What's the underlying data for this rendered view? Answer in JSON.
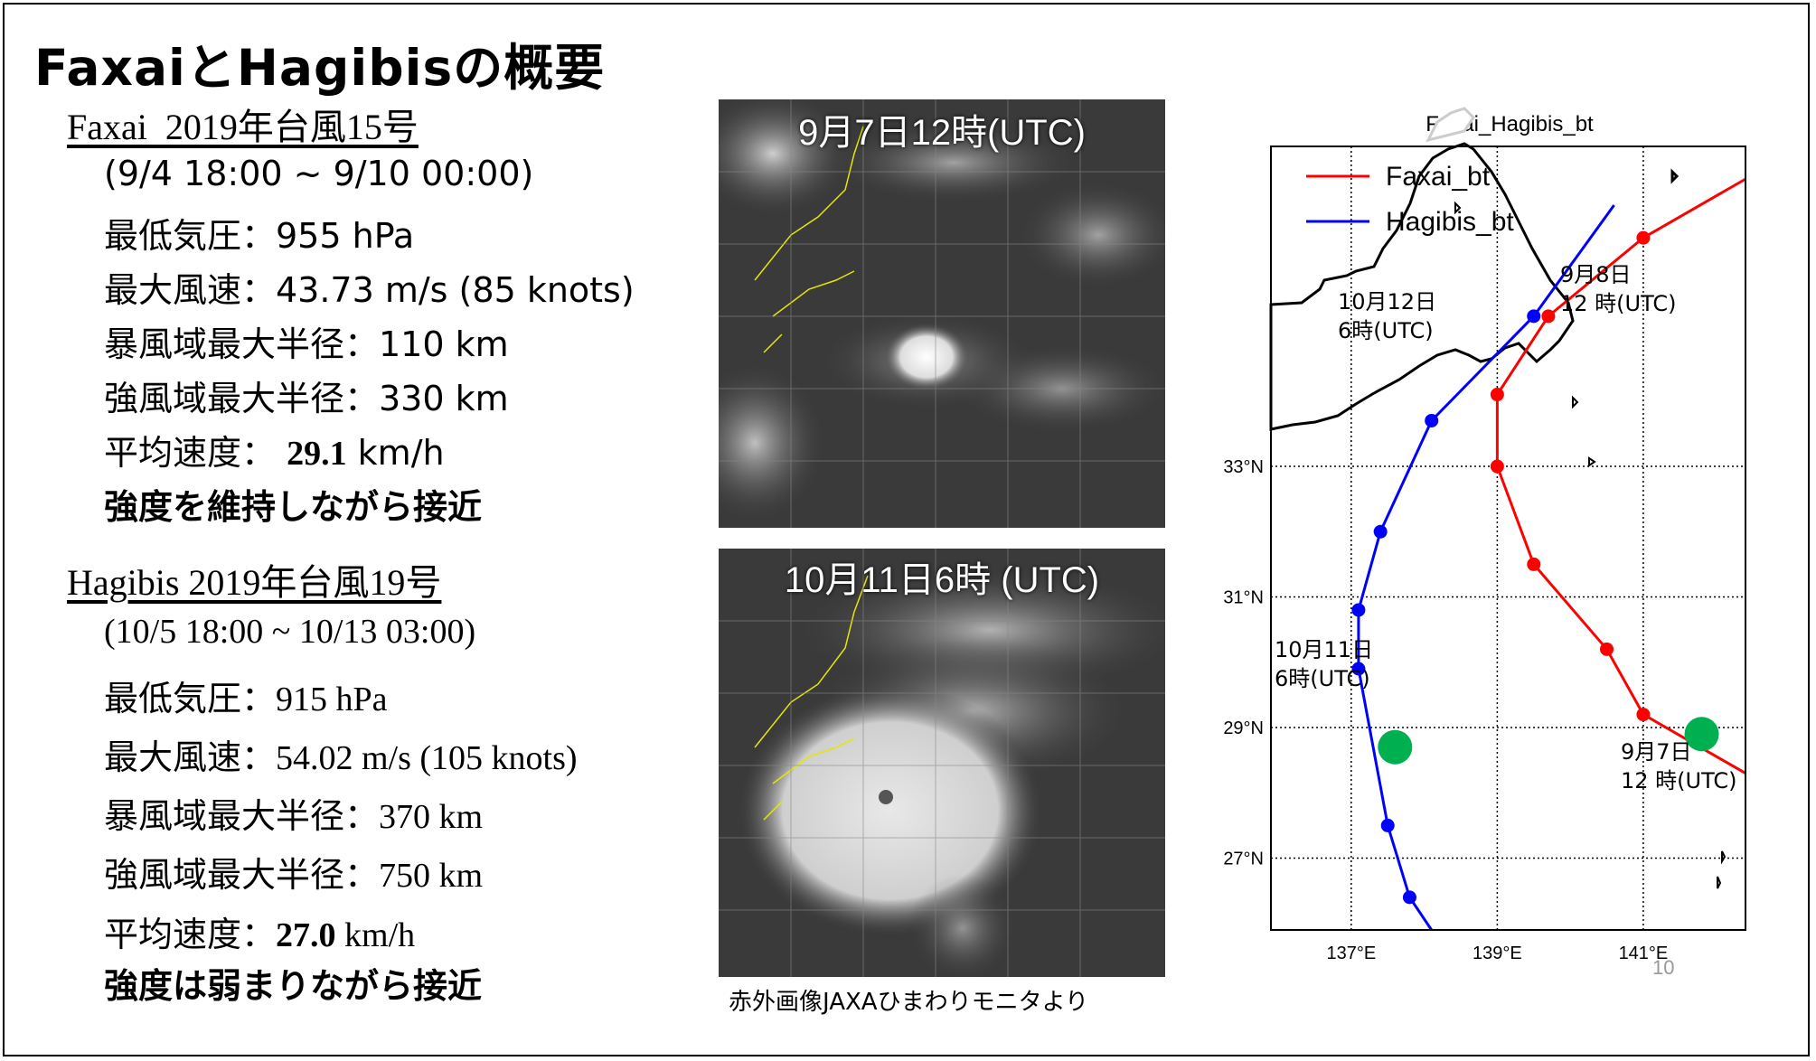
{
  "title": "FaxaiとHagibisの概要",
  "faxai": {
    "heading": "Faxai  2019年台風15号",
    "period": "(9/4 18:00 ~ 9/10 00:00)",
    "min_pressure": "最低気圧：955 hPa",
    "max_wind": "最大風速：43.73 m/s (85 knots)",
    "storm_radius": "暴風域最大半径：110 km",
    "strong_radius": "強風域最大半径：330 km",
    "avg_speed_label": "平均速度： ",
    "avg_speed_value": "29.1",
    "avg_speed_unit": " km/h",
    "note": "強度を維持しながら接近"
  },
  "hagibis": {
    "heading": "Hagibis 2019年台風19号",
    "period": "(10/5 18:00 ~ 10/13 03:00)",
    "min_pressure": "最低気圧：915 hPa",
    "max_wind": "最大風速：54.02 m/s (105 knots)",
    "storm_radius": "暴風域最大半径：370 km",
    "strong_radius": "強風域最大半径：750 km",
    "avg_speed_label": "平均速度：",
    "avg_speed_value": "27.0",
    "avg_speed_unit": " km/h",
    "note": "強度は弱まりながら接近"
  },
  "satellite": {
    "top_label": "9月7日12時(UTC)",
    "bottom_label": "10月11日6時 (UTC)",
    "source": "赤外画像JAXAひまわりモニタより"
  },
  "page_number": "10",
  "colors": {
    "faxai": "#ff0000",
    "hagibis": "#0000ff",
    "marker": "#00b050"
  },
  "chart_data": {
    "type": "line",
    "title": "Faxai_Hagibis_bt",
    "xlabel": "",
    "ylabel": "",
    "xlim": [
      135.9,
      142.4
    ],
    "ylim": [
      25.9,
      37.9
    ],
    "xticks": [
      "137°E",
      "139°E",
      "141°E"
    ],
    "yticks": [
      "27°N",
      "29°N",
      "31°N",
      "33°N"
    ],
    "grid": true,
    "legend_position": "top-left",
    "series": [
      {
        "name": "Faxai_bt",
        "color": "#ff0000",
        "points": [
          [
            142.4,
            28.3
          ],
          [
            141.0,
            29.2
          ],
          [
            140.5,
            30.2
          ],
          [
            139.5,
            31.5
          ],
          [
            139.0,
            33.0
          ],
          [
            139.0,
            34.1
          ],
          [
            139.7,
            35.3
          ],
          [
            141.0,
            36.5
          ],
          [
            142.4,
            37.4
          ]
        ]
      },
      {
        "name": "Hagibis_bt",
        "color": "#0000ff",
        "points": [
          [
            138.1,
            25.9
          ],
          [
            137.8,
            26.4
          ],
          [
            137.5,
            27.5
          ],
          [
            137.1,
            29.9
          ],
          [
            137.1,
            30.8
          ],
          [
            137.4,
            32.0
          ],
          [
            138.1,
            33.7
          ],
          [
            139.5,
            35.3
          ],
          [
            140.6,
            37.0
          ]
        ]
      }
    ],
    "markers": [
      {
        "lon": 141.8,
        "lat": 28.9,
        "label": [
          "9月7日",
          "12 時(UTC)"
        ]
      },
      {
        "lon": 137.6,
        "lat": 28.7,
        "label": [
          "10月11日",
          "6時(UTC)"
        ]
      }
    ],
    "annotations": [
      {
        "text": [
          "9月8日",
          "12 時(UTC)"
        ]
      },
      {
        "text": [
          "10月12日",
          "6時(UTC)"
        ]
      }
    ]
  }
}
